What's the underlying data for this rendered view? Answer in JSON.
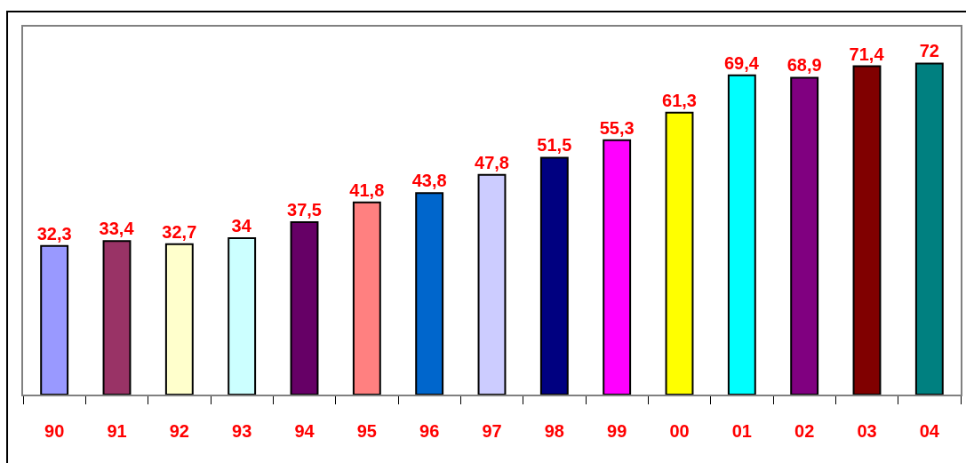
{
  "chart_data": {
    "type": "bar",
    "categories": [
      "90",
      "91",
      "92",
      "93",
      "94",
      "95",
      "96",
      "97",
      "98",
      "99",
      "00",
      "01",
      "02",
      "03",
      "04"
    ],
    "values": [
      32.3,
      33.4,
      32.7,
      34,
      37.5,
      41.8,
      43.8,
      47.8,
      51.5,
      55.3,
      61.3,
      69.4,
      68.9,
      71.4,
      72
    ],
    "value_labels": [
      "32,3",
      "33,4",
      "32,7",
      "34",
      "37,5",
      "41,8",
      "43,8",
      "47,8",
      "51,5",
      "55,3",
      "61,3",
      "69,4",
      "68,9",
      "71,4",
      "72"
    ],
    "colors": [
      "#9999ff",
      "#993366",
      "#ffffcc",
      "#ccffff",
      "#660066",
      "#ff8080",
      "#0066cc",
      "#ccccff",
      "#000080",
      "#ff00ff",
      "#ffff00",
      "#00ffff",
      "#800080",
      "#800000",
      "#008080"
    ],
    "ylim": [
      0,
      80
    ],
    "tick_labels": "x"
  }
}
